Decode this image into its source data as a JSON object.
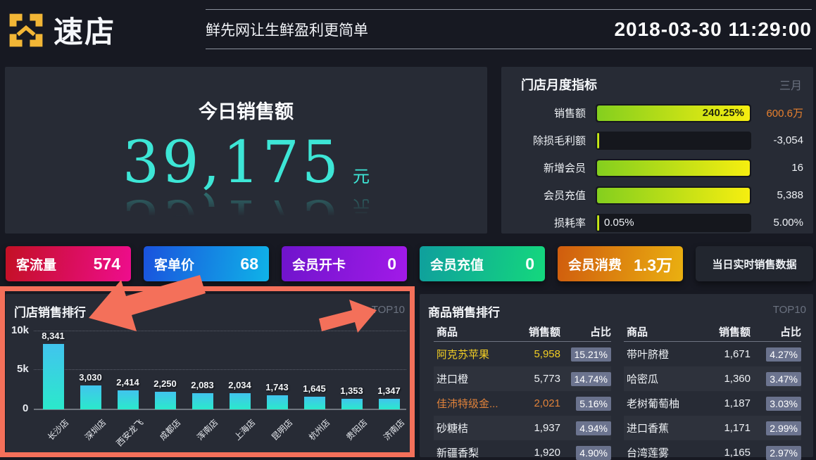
{
  "header": {
    "logo_text": "速店",
    "slogan": "鲜先网让生鲜盈利更简单",
    "datetime": "2018-03-30 11:29:00"
  },
  "today_sales": {
    "title": "今日销售额",
    "amount": "39,175",
    "unit": "元"
  },
  "monthly": {
    "title": "门店月度指标",
    "month_label": "三月",
    "bar_gradient": [
      "#84cf1e",
      "#f6ee10"
    ],
    "rows": [
      {
        "label": "销售额",
        "value": "600.6万",
        "value_color": "#e8802e",
        "bar_pct": 100,
        "bar_text": "240.25%"
      },
      {
        "label": "除损毛利额",
        "value": "-3,054",
        "bar_pct": 1.2
      },
      {
        "label": "新增会员",
        "value": "16",
        "bar_pct": 100
      },
      {
        "label": "会员充值",
        "value": "5,388",
        "bar_pct": 100
      },
      {
        "label": "损耗率",
        "value": "5.00%",
        "bar_pct": 1.2,
        "track_text": "0.05%"
      }
    ]
  },
  "stat_cards": [
    {
      "label": "客流量",
      "value": "574",
      "gradient": [
        "#c31024",
        "#ee0d8d"
      ]
    },
    {
      "label": "客单价",
      "value": "68",
      "gradient": [
        "#1a52dd",
        "#0fb3e8"
      ]
    },
    {
      "label": "会员开卡",
      "value": "0",
      "gradient": [
        "#6f14cc",
        "#a21ae8"
      ]
    },
    {
      "label": "会员充值",
      "value": "0",
      "gradient": [
        "#0f9f9d",
        "#14d87d"
      ]
    },
    {
      "label": "会员消费",
      "value": "1.3万",
      "gradient": [
        "#d05c0e",
        "#eab010"
      ]
    }
  ],
  "realtime_button": {
    "label": "当日实时销售数据"
  },
  "chart_data": {
    "type": "bar",
    "title": "门店销售排行",
    "badge": "TOP10",
    "categories": [
      "长沙店",
      "深圳店",
      "西安龙飞",
      "成都店",
      "浑南店",
      "上海店",
      "昆明店",
      "杭州店",
      "贵阳店",
      "济南店"
    ],
    "values": [
      8341,
      3030,
      2414,
      2250,
      2083,
      2034,
      1743,
      1645,
      1353,
      1347
    ],
    "value_labels": [
      "8,341",
      "3,030",
      "2,414",
      "2,250",
      "2,083",
      "2,034",
      "1,743",
      "1,645",
      "1,353",
      "1,347"
    ],
    "ylim": [
      0,
      10000
    ],
    "yticks": [
      {
        "label": "10k",
        "value": 10000
      },
      {
        "label": "5k",
        "value": 5000
      },
      {
        "label": "0",
        "value": 0
      }
    ],
    "grid": "dotted horizontal",
    "bar_color_top": "#41c4ee",
    "bar_color_bottom": "#2be9cb"
  },
  "product_ranking": {
    "title": "商品销售排行",
    "badge": "TOP10",
    "columns": [
      "商品",
      "销售额",
      "占比"
    ],
    "left_rows": [
      {
        "name": "阿克苏苹果",
        "value": "5,958",
        "pct": "15.21%",
        "color": "#f2ce24"
      },
      {
        "name": "进口橙",
        "value": "5,773",
        "pct": "14.74%"
      },
      {
        "name": "佳沛特级金...",
        "value": "2,021",
        "pct": "5.16%",
        "color": "#e0823a"
      },
      {
        "name": "砂糖桔",
        "value": "1,937",
        "pct": "4.94%"
      },
      {
        "name": "新疆香梨",
        "value": "1,920",
        "pct": "4.90%"
      }
    ],
    "right_rows": [
      {
        "name": "带叶脐橙",
        "value": "1,671",
        "pct": "4.27%"
      },
      {
        "name": "哈密瓜",
        "value": "1,360",
        "pct": "3.47%"
      },
      {
        "name": "老树葡萄柚",
        "value": "1,187",
        "pct": "3.03%"
      },
      {
        "name": "进口香蕉",
        "value": "1,171",
        "pct": "2.99%"
      },
      {
        "name": "台湾莲雾",
        "value": "1,165",
        "pct": "2.97%"
      }
    ]
  },
  "annotation": {
    "color": "#f4705a"
  },
  "colors": {
    "page_bg": "#171922",
    "panel_bg": "#272b35",
    "accent_teal": "#3de6d6",
    "value_orange": "#e8802e",
    "logo_yellow": "#f2b636"
  }
}
